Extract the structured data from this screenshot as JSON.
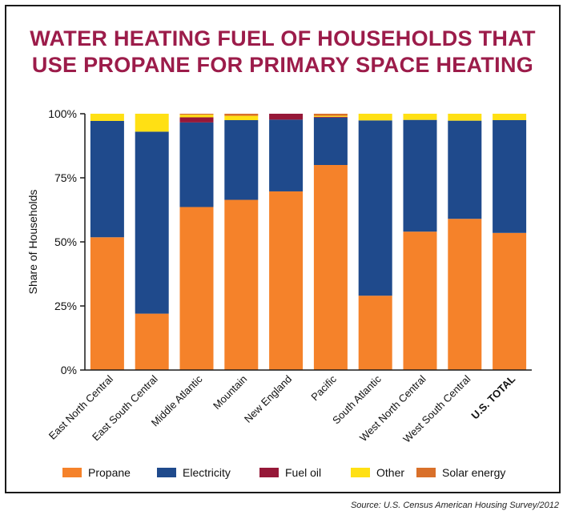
{
  "title_line1": "WATER HEATING FUEL OF HOUSEHOLDS THAT",
  "title_line2": "USE PROPANE FOR PRIMARY SPACE HEATING",
  "source": "Source: U.S. Census American Housing Survey/2012",
  "chart_data": {
    "type": "bar",
    "stacked": true,
    "title": "WATER HEATING FUEL OF HOUSEHOLDS THAT USE PROPANE FOR PRIMARY SPACE HEATING",
    "ylabel": "Share of Households",
    "xlabel": "",
    "ylim": [
      0,
      100
    ],
    "yticks": [
      "0%",
      "25%",
      "50%",
      "75%",
      "100%"
    ],
    "ytick_values": [
      0,
      25,
      50,
      75,
      100
    ],
    "grid": false,
    "legend_position": "bottom",
    "categories": [
      "East North Central",
      "East South Central",
      "Middle Atlantic",
      "Mountain",
      "New England",
      "Pacific",
      "South Atlantic",
      "West North Central",
      "West South Central",
      "U.S. TOTAL"
    ],
    "series": [
      {
        "name": "Propane",
        "color": "#f5822a",
        "values": [
          51.8,
          22.0,
          63.6,
          66.4,
          69.7,
          80.0,
          29.0,
          54.0,
          59.0,
          53.5
        ]
      },
      {
        "name": "Electricity",
        "color": "#1f4a8c",
        "values": [
          45.4,
          71.0,
          33.0,
          31.1,
          28.0,
          18.5,
          68.4,
          43.6,
          38.3,
          44.0
        ]
      },
      {
        "name": "Fuel oil",
        "color": "#961838",
        "values": [
          0.0,
          0.0,
          2.0,
          0.0,
          2.3,
          0.3,
          0.0,
          0.0,
          0.0,
          0.0
        ]
      },
      {
        "name": "Other",
        "color": "#ffe014",
        "values": [
          2.8,
          7.0,
          1.0,
          1.7,
          0.0,
          0.4,
          2.6,
          2.4,
          2.7,
          2.5
        ]
      },
      {
        "name": "Solar energy",
        "color": "#d9702a",
        "values": [
          0.0,
          0.0,
          0.4,
          0.8,
          0.0,
          0.8,
          0.0,
          0.0,
          0.0,
          0.0
        ]
      }
    ],
    "bold_categories": [
      "U.S. TOTAL"
    ]
  }
}
